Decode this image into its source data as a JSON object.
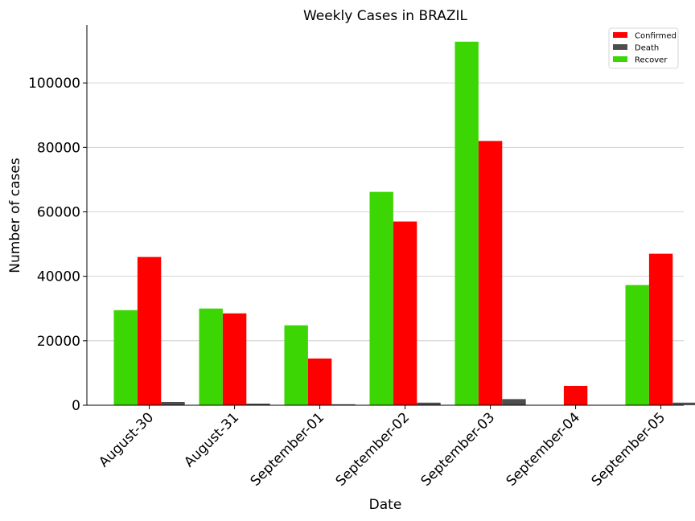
{
  "chart_data": {
    "type": "bar",
    "title": "Weekly Cases in BRAZIL",
    "xlabel": "Date",
    "ylabel": "Number of cases",
    "categories": [
      "August-30",
      "August-31",
      "September-01",
      "September-02",
      "September-03",
      "September-04",
      "September-05"
    ],
    "series": [
      {
        "name": "Recover",
        "color": "#3dd605",
        "values": [
          29500,
          30000,
          24800,
          66200,
          112800,
          0,
          37300
        ]
      },
      {
        "name": "Confirmed",
        "color": "#ff0000",
        "values": [
          46000,
          28500,
          14500,
          57000,
          82000,
          6000,
          47000
        ]
      },
      {
        "name": "Death",
        "color": "#4d4d4d",
        "values": [
          1000,
          500,
          300,
          800,
          1900,
          0,
          800
        ]
      }
    ],
    "legend_order": [
      "Confirmed",
      "Death",
      "Recover"
    ],
    "legend_position": "top-right",
    "ylim": [
      0,
      118000
    ],
    "yticks": [
      0,
      20000,
      40000,
      60000,
      80000,
      100000
    ],
    "grid": "horizontal"
  }
}
